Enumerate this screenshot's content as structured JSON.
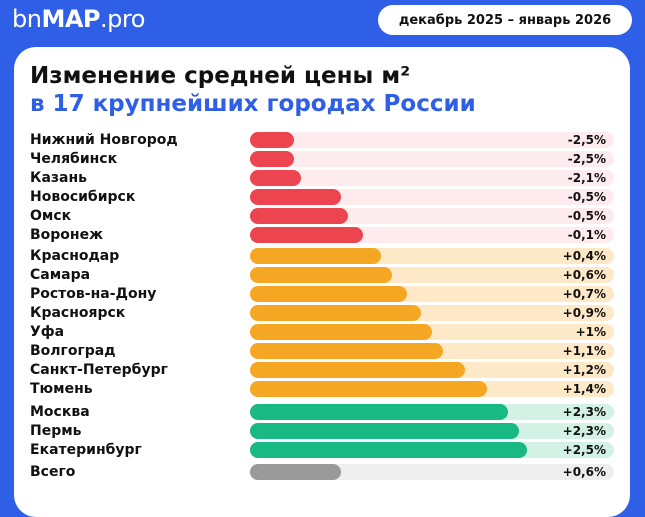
{
  "brand": {
    "part1": "bn",
    "part2": "MAP",
    "part3": ".pro"
  },
  "period": "декабрь 2025 – январь 2026",
  "title_line1": "Изменение средней цены м²",
  "title_line2": "в 17 крупнейших городах России",
  "colors": {
    "negative": "#ec4550",
    "negative_track": "#fdebee",
    "positive": "#f5a623",
    "positive_track": "#fde8c8",
    "leader": "#18b982",
    "leader_track": "#d3f1e5",
    "total": "#9a9a9a",
    "total_track": "#eeeeee"
  },
  "chart_data": {
    "type": "bar",
    "orientation": "horizontal",
    "unit": "%",
    "categories": [
      "Нижний Новгород",
      "Челябинск",
      "Казань",
      "Новосибирск",
      "Омск",
      "Воронеж",
      "Краснодар",
      "Самара",
      "Ростов-на-Дону",
      "Красноярск",
      "Уфа",
      "Волгоград",
      "Санкт-Петербург",
      "Тюмень",
      "Москва",
      "Пермь",
      "Екатеринбург",
      "Всего"
    ],
    "values": [
      -2.5,
      -2.5,
      -2.1,
      -0.5,
      -0.5,
      -0.1,
      0.4,
      0.6,
      0.7,
      0.9,
      1,
      1.1,
      1.2,
      1.4,
      2.3,
      2.3,
      2.5,
      0.6
    ],
    "labels": [
      "-2,5%",
      "-2,5%",
      "-2,1%",
      "-0,5%",
      "-0,5%",
      "-0,1%",
      "+0,4%",
      "+0,6%",
      "+0,7%",
      "+0,9%",
      "+1%",
      "+1,1%",
      "+1,2%",
      "+1,4%",
      "+2,3%",
      "+2,3%",
      "+2,5%",
      "+0,6%"
    ],
    "groups": [
      "negative",
      "negative",
      "negative",
      "negative",
      "negative",
      "negative",
      "positive",
      "positive",
      "positive",
      "positive",
      "positive",
      "positive",
      "positive",
      "positive",
      "leader",
      "leader",
      "leader",
      "total"
    ],
    "bar_fraction": [
      0.12,
      0.12,
      0.14,
      0.25,
      0.27,
      0.31,
      0.36,
      0.39,
      0.43,
      0.47,
      0.5,
      0.53,
      0.59,
      0.65,
      0.71,
      0.74,
      0.76,
      0.25
    ]
  }
}
